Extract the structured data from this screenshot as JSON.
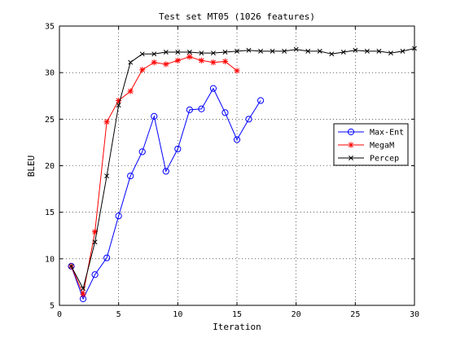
{
  "chart_data": {
    "type": "line",
    "title": "Test set MT05 (1026 features)",
    "xlabel": "Iteration",
    "ylabel": "BLEU",
    "xlim": [
      0,
      30
    ],
    "ylim": [
      5,
      35
    ],
    "xticks": [
      0,
      5,
      10,
      15,
      20,
      25,
      30
    ],
    "yticks": [
      5,
      10,
      15,
      20,
      25,
      30,
      35
    ],
    "grid": true,
    "legend_position": "right",
    "series": [
      {
        "name": "Max-Ent",
        "color": "#0000ff",
        "marker": "circle",
        "x": [
          1,
          2,
          3,
          4,
          5,
          6,
          7,
          8,
          9,
          10,
          11,
          12,
          13,
          14,
          15,
          16,
          17
        ],
        "y": [
          9.2,
          5.7,
          8.3,
          10.1,
          14.6,
          18.9,
          21.5,
          25.3,
          19.4,
          21.8,
          26.0,
          26.1,
          28.3,
          25.7,
          22.8,
          25.0,
          27.0
        ]
      },
      {
        "name": "MegaM",
        "color": "#ff0000",
        "marker": "star",
        "x": [
          1,
          2,
          3,
          4,
          5,
          6,
          7,
          8,
          9,
          10,
          11,
          12,
          13,
          14,
          15
        ],
        "y": [
          9.2,
          6.2,
          12.9,
          24.7,
          27.0,
          28.0,
          30.3,
          31.1,
          30.9,
          31.3,
          31.7,
          31.3,
          31.1,
          31.2,
          30.2
        ]
      },
      {
        "name": "Percep",
        "color": "#000000",
        "marker": "x",
        "x": [
          1,
          2,
          3,
          4,
          5,
          6,
          7,
          8,
          9,
          10,
          11,
          12,
          13,
          14,
          15,
          16,
          17,
          18,
          19,
          20,
          21,
          22,
          23,
          24,
          25,
          26,
          27,
          28,
          29,
          30
        ],
        "y": [
          9.2,
          6.8,
          11.8,
          18.9,
          26.5,
          31.1,
          32.0,
          32.0,
          32.2,
          32.2,
          32.2,
          32.1,
          32.1,
          32.2,
          32.3,
          32.4,
          32.3,
          32.3,
          32.3,
          32.5,
          32.3,
          32.3,
          32.0,
          32.2,
          32.4,
          32.3,
          32.3,
          32.1,
          32.3,
          32.6
        ]
      }
    ]
  }
}
